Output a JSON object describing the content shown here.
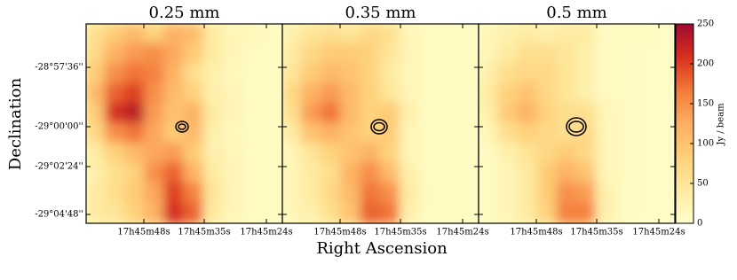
{
  "chart_data": {
    "type": "heatmap",
    "xlabel": "Right Ascension",
    "ylabel": "Declination",
    "xticks": [
      "17h45m48s",
      "17h45m35s",
      "17h45m24s"
    ],
    "yticks": [
      "-28°57'36''",
      "-29°00'00''",
      "-29°02'24''",
      "-29°04'48''"
    ],
    "colormap": [
      "#ffffcc",
      "#feeaa0",
      "#fed07a",
      "#fdae61",
      "#f37a3a",
      "#d7301f",
      "#9e0a30"
    ],
    "colorbar": {
      "label": "Jy / beam",
      "lim": [
        0,
        250
      ],
      "ticks": [
        0,
        50,
        100,
        150,
        200,
        250
      ]
    },
    "panels": [
      {
        "title": "0.25 mm",
        "values": [
          [
            60,
            90,
            110,
            80,
            120,
            110,
            40,
            20,
            15,
            10
          ],
          [
            70,
            120,
            140,
            150,
            130,
            90,
            40,
            20,
            10,
            10
          ],
          [
            90,
            150,
            170,
            160,
            120,
            60,
            30,
            15,
            10,
            10
          ],
          [
            110,
            180,
            200,
            150,
            110,
            80,
            30,
            20,
            10,
            10
          ],
          [
            90,
            210,
            230,
            140,
            100,
            120,
            40,
            20,
            10,
            10
          ],
          [
            70,
            150,
            170,
            130,
            90,
            110,
            30,
            15,
            10,
            10
          ],
          [
            40,
            80,
            110,
            130,
            140,
            90,
            30,
            20,
            10,
            10
          ],
          [
            30,
            60,
            80,
            150,
            180,
            120,
            40,
            20,
            10,
            10
          ],
          [
            40,
            60,
            90,
            130,
            200,
            160,
            50,
            20,
            10,
            10
          ],
          [
            40,
            50,
            80,
            120,
            210,
            180,
            40,
            20,
            10,
            10
          ]
        ]
      },
      {
        "title": "0.35 mm",
        "values": [
          [
            30,
            50,
            60,
            50,
            70,
            60,
            20,
            10,
            10,
            10
          ],
          [
            40,
            70,
            90,
            90,
            80,
            50,
            20,
            10,
            10,
            10
          ],
          [
            50,
            90,
            110,
            100,
            80,
            40,
            20,
            10,
            10,
            10
          ],
          [
            70,
            120,
            140,
            110,
            80,
            50,
            20,
            10,
            10,
            10
          ],
          [
            60,
            140,
            170,
            110,
            80,
            90,
            30,
            10,
            10,
            10
          ],
          [
            40,
            100,
            120,
            100,
            80,
            90,
            20,
            10,
            10,
            10
          ],
          [
            20,
            50,
            80,
            100,
            120,
            80,
            20,
            10,
            10,
            10
          ],
          [
            20,
            40,
            60,
            120,
            150,
            110,
            30,
            10,
            10,
            10
          ],
          [
            20,
            40,
            70,
            110,
            170,
            150,
            40,
            10,
            10,
            10
          ],
          [
            20,
            30,
            60,
            100,
            180,
            170,
            30,
            10,
            10,
            10
          ]
        ]
      },
      {
        "title": "0.5 mm",
        "values": [
          [
            20,
            30,
            40,
            30,
            40,
            40,
            10,
            10,
            10,
            5
          ],
          [
            20,
            40,
            60,
            60,
            50,
            30,
            10,
            10,
            5,
            5
          ],
          [
            30,
            60,
            70,
            70,
            50,
            30,
            10,
            10,
            5,
            5
          ],
          [
            40,
            80,
            100,
            70,
            50,
            30,
            10,
            10,
            5,
            5
          ],
          [
            30,
            90,
            120,
            80,
            60,
            60,
            20,
            10,
            5,
            5
          ],
          [
            20,
            60,
            80,
            70,
            60,
            70,
            20,
            10,
            5,
            5
          ],
          [
            10,
            30,
            50,
            70,
            90,
            70,
            20,
            10,
            5,
            5
          ],
          [
            10,
            20,
            40,
            90,
            120,
            100,
            20,
            10,
            5,
            5
          ],
          [
            10,
            20,
            40,
            90,
            150,
            140,
            30,
            10,
            5,
            5
          ],
          [
            10,
            20,
            40,
            80,
            160,
            160,
            30,
            10,
            5,
            5
          ]
        ]
      }
    ]
  }
}
